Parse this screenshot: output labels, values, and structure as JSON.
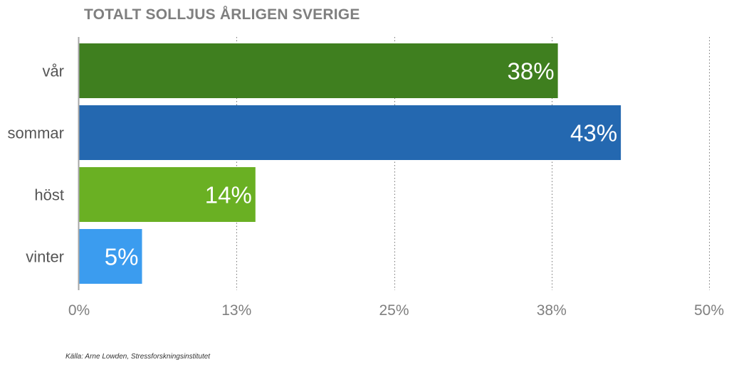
{
  "chart_data": {
    "type": "bar",
    "orientation": "horizontal",
    "title": "TOTALT SOLLJUS ÅRLIGEN SVERIGE",
    "categories": [
      "vår",
      "sommar",
      "höst",
      "vinter"
    ],
    "values": [
      38,
      43,
      14,
      5
    ],
    "data_labels": [
      "38%",
      "43%",
      "14%",
      "5%"
    ],
    "colors": [
      "#3f7f1f",
      "#2468b0",
      "#6ab023",
      "#3b9cef"
    ],
    "xlim": [
      0,
      50
    ],
    "x_ticks": [
      0,
      12.5,
      25,
      37.5,
      50
    ],
    "x_tick_labels": [
      "0%",
      "13%",
      "25%",
      "38%",
      "50%"
    ],
    "grid": "vertical dotted",
    "legend": "none",
    "xlabel": "",
    "ylabel": ""
  },
  "source": "Källa: Arne Lowden, Stressforskningsinstitutet",
  "colors": {
    "title": "#7f7f7f",
    "axis_text": "#7f7f7f",
    "category_text": "#555555",
    "bar_label": "#ffffff",
    "axis_line": "#a6a6a6",
    "gridline": "#777777"
  }
}
